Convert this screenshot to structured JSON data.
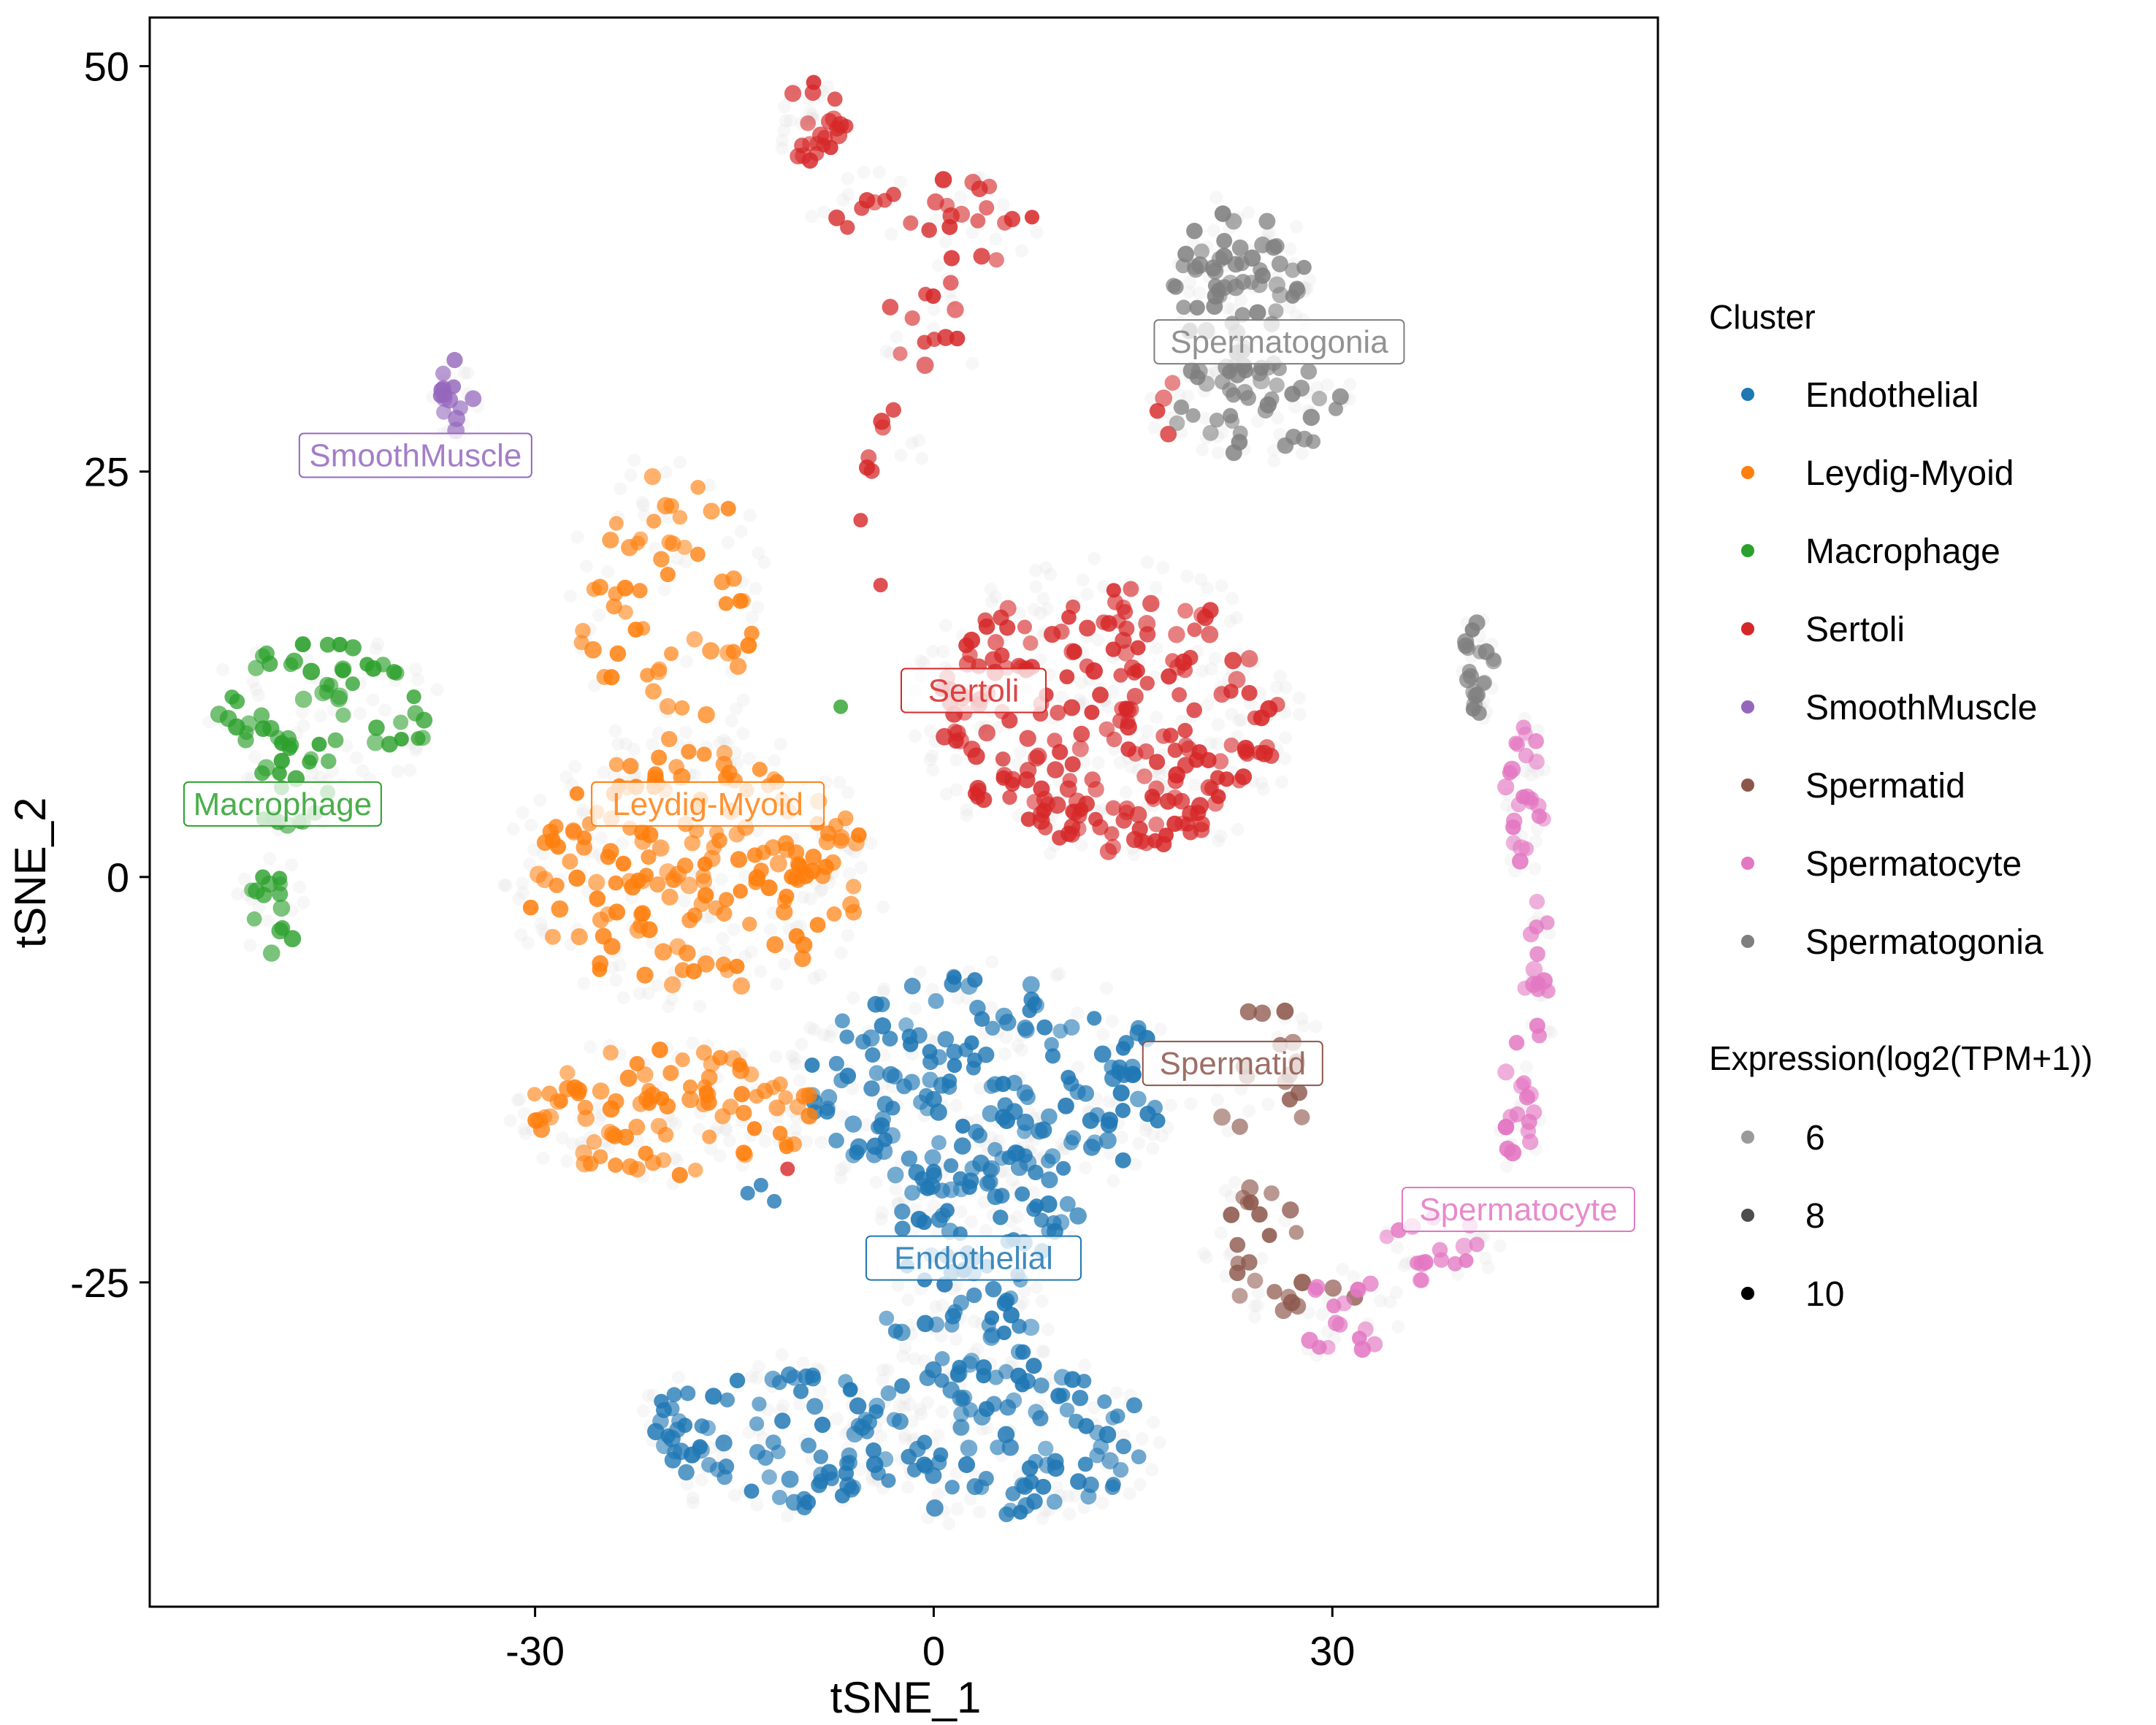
{
  "chart_data": {
    "type": "scatter",
    "xlabel": "tSNE_1",
    "ylabel": "tSNE_2",
    "xlim": [
      -59,
      54.5
    ],
    "ylim": [
      -45,
      53
    ],
    "x_ticks": [
      -30,
      0,
      30
    ],
    "y_ticks": [
      50,
      25,
      0,
      -25
    ],
    "grid": false,
    "legend_placement": "right",
    "legend_cluster_title": "Cluster",
    "legend_size_title": "Expression(log2(TPM+1))",
    "size_legend": [
      {
        "label": "6",
        "value": 6
      },
      {
        "label": "8",
        "value": 8
      },
      {
        "label": "10",
        "value": 10
      }
    ],
    "background_cells_color": "#e0e0e0",
    "series": [
      {
        "name": "Endothelial",
        "color": "#1f77b4",
        "label": "Endothelial",
        "label_at": [
          3,
          -23.5
        ],
        "lines": [
          [
            -14,
            -19.5
          ],
          [
            -13,
            -19
          ],
          [
            -12,
            -20
          ],
          [
            -2,
            -24
          ],
          [
            2,
            -22
          ],
          [
            4,
            -24
          ]
        ],
        "clusters": [
          {
            "cx": 4,
            "cy": -13,
            "rx": 13.5,
            "ry": 7,
            "n": 170,
            "seed": 11
          },
          {
            "cx": 4,
            "cy": -20.5,
            "rx": 7,
            "ry": 4,
            "n": 40,
            "seed": 12
          },
          {
            "cx": 2,
            "cy": -27,
            "rx": 6,
            "ry": 4,
            "n": 40,
            "seed": 13
          },
          {
            "cx": -12,
            "cy": -34.5,
            "rx": 10,
            "ry": 4.5,
            "n": 80,
            "seed": 14
          },
          {
            "cx": 5,
            "cy": -34.5,
            "rx": 11,
            "ry": 5,
            "n": 100,
            "seed": 15
          }
        ]
      },
      {
        "name": "Leydig-Myoid",
        "color": "#ff7f0e",
        "label": "Leydig-Myoid",
        "label_at": [
          -17,
          4.5
        ],
        "lines": [],
        "clusters": [
          {
            "cx": -20,
            "cy": 17,
            "rx": 7,
            "ry": 8.5,
            "n": 55,
            "seed": 21
          },
          {
            "cx": -18,
            "cy": 0.5,
            "rx": 13,
            "ry": 7.5,
            "n": 170,
            "seed": 22
          },
          {
            "cx": -20,
            "cy": -14.5,
            "rx": 11,
            "ry": 4,
            "n": 90,
            "seed": 23
          }
        ]
      },
      {
        "name": "Macrophage",
        "color": "#2ca02c",
        "label": "Macrophage",
        "label_at": [
          -49,
          4.5
        ],
        "lines": [
          [
            -7,
            10.5
          ]
        ],
        "clusters": [
          {
            "cx": -46,
            "cy": 10,
            "rx": 8,
            "ry": 4.5,
            "n": 60,
            "seed": 31
          },
          {
            "cx": -48,
            "cy": 5,
            "rx": 3.5,
            "ry": 2.5,
            "n": 12,
            "seed": 32
          },
          {
            "cx": -50,
            "cy": -2,
            "rx": 2.5,
            "ry": 3,
            "n": 14,
            "seed": 33
          }
        ]
      },
      {
        "name": "Sertoli",
        "color": "#d62728",
        "label": "Sertoli",
        "label_at": [
          3,
          11.5
        ],
        "lines": [
          [
            -5.5,
            22
          ],
          [
            -4,
            18
          ],
          [
            -11,
            -18
          ]
        ],
        "clusters": [
          {
            "cx": -9,
            "cy": 46.5,
            "rx": 2.5,
            "ry": 2.5,
            "n": 22,
            "seed": 41
          },
          {
            "cx": -3,
            "cy": 41.5,
            "rx": 6,
            "ry": 2,
            "n": 14,
            "seed": 42
          },
          {
            "cx": 4,
            "cy": 40,
            "rx": 4,
            "ry": 3,
            "n": 12,
            "seed": 43
          },
          {
            "cx": 0,
            "cy": 34,
            "rx": 3.5,
            "ry": 3.5,
            "n": 12,
            "seed": 44
          },
          {
            "cx": -3,
            "cy": 27,
            "rx": 2.5,
            "ry": 3,
            "n": 6,
            "seed": 45
          },
          {
            "cx": 13,
            "cy": 10,
            "rx": 13,
            "ry": 8.5,
            "n": 230,
            "seed": 46
          },
          {
            "cx": 18,
            "cy": 29,
            "rx": 1.5,
            "ry": 2,
            "n": 4,
            "seed": 47
          }
        ]
      },
      {
        "name": "SmoothMuscle",
        "color": "#9467bd",
        "label": "SmoothMuscle",
        "label_at": [
          -39,
          26
        ],
        "lines": [],
        "clusters": [
          {
            "cx": -36,
            "cy": 29.5,
            "rx": 1.5,
            "ry": 2.5,
            "n": 14,
            "seed": 51
          }
        ]
      },
      {
        "name": "Spermatid",
        "color": "#8c564b",
        "label": "Spermatid",
        "label_at": [
          22.5,
          -11.5
        ],
        "lines": [],
        "clusters": [
          {
            "cx": 25,
            "cy": -12,
            "rx": 5,
            "ry": 4,
            "n": 16,
            "seed": 61
          },
          {
            "cx": 24,
            "cy": -22.5,
            "rx": 3.5,
            "ry": 3.5,
            "n": 16,
            "seed": 62
          },
          {
            "cx": 28,
            "cy": -26.5,
            "rx": 4,
            "ry": 1.5,
            "n": 8,
            "seed": 63
          }
        ]
      },
      {
        "name": "Spermatocyte",
        "color": "#e377c2",
        "label": "Spermatocyte",
        "label_at": [
          44,
          -20.5
        ],
        "lines": [],
        "clusters": [
          {
            "cx": 44.5,
            "cy": 5,
            "rx": 1.5,
            "ry": 5,
            "n": 24,
            "seed": 71
          },
          {
            "cx": 45.5,
            "cy": -6,
            "rx": 1.2,
            "ry": 5,
            "n": 14,
            "seed": 72
          },
          {
            "cx": 44,
            "cy": -14,
            "rx": 1.5,
            "ry": 4,
            "n": 16,
            "seed": 73
          },
          {
            "cx": 38,
            "cy": -23,
            "rx": 4.5,
            "ry": 2,
            "n": 16,
            "seed": 74
          },
          {
            "cx": 31,
            "cy": -27,
            "rx": 4,
            "ry": 2.5,
            "n": 16,
            "seed": 75
          }
        ]
      },
      {
        "name": "Spermatogonia",
        "color": "#7f7f7f",
        "label": "Spermatogonia",
        "label_at": [
          26,
          33
        ],
        "lines": [],
        "clusters": [
          {
            "cx": 23,
            "cy": 36.5,
            "rx": 5,
            "ry": 5,
            "n": 60,
            "seed": 81
          },
          {
            "cx": 24,
            "cy": 29,
            "rx": 7,
            "ry": 3,
            "n": 45,
            "seed": 82
          },
          {
            "cx": 41,
            "cy": 13,
            "rx": 1.2,
            "ry": 3,
            "n": 20,
            "seed": 83
          }
        ]
      }
    ]
  }
}
